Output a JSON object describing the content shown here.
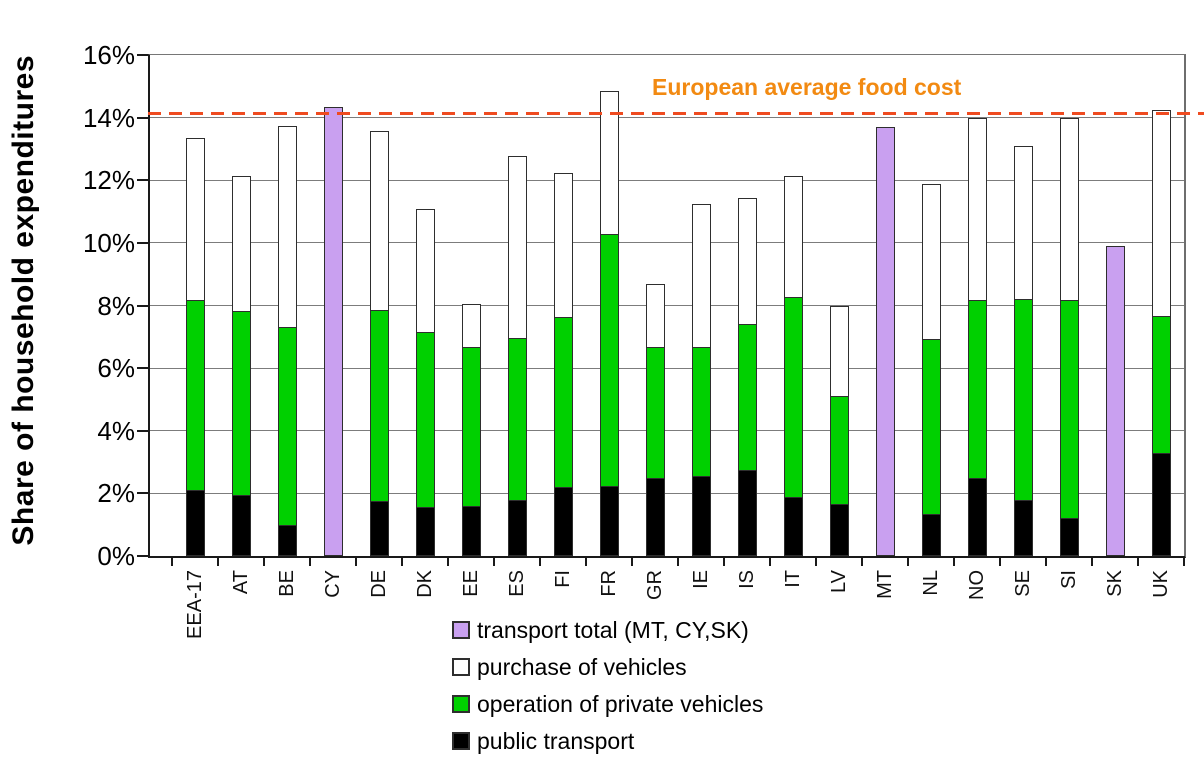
{
  "chart_data": {
    "type": "bar",
    "stacked": true,
    "title": "",
    "ylabel": "Share of household expenditures",
    "xlabel": "",
    "ylim": [
      0,
      16
    ],
    "y_ticks": [
      0,
      2,
      4,
      6,
      8,
      10,
      12,
      14,
      16
    ],
    "y_tick_labels": [
      "0%",
      "2%",
      "4%",
      "6%",
      "8%",
      "10%",
      "12%",
      "14%",
      "16%"
    ],
    "grid": true,
    "legend_position": "bottom",
    "annotation": {
      "text": "European average food cost",
      "y_value": 14.15
    },
    "categories": [
      "EEA-17",
      "AT",
      "BE",
      "CY",
      "DE",
      "DK",
      "EE",
      "ES",
      "FI",
      "FR",
      "GR",
      "IE",
      "IS",
      "IT",
      "LV",
      "MT",
      "NL",
      "NO",
      "SE",
      "SI",
      "SK",
      "UK"
    ],
    "series": [
      {
        "name": "public transport",
        "key": "public-transport",
        "color": "#000000",
        "values": [
          2.1,
          1.95,
          1.0,
          0,
          1.75,
          1.55,
          1.6,
          1.8,
          2.2,
          2.25,
          2.5,
          2.55,
          2.75,
          1.9,
          1.65,
          0,
          1.35,
          2.5,
          1.8,
          1.2,
          0,
          3.3
        ]
      },
      {
        "name": "operation of private vehicles",
        "key": "operation-of-private-vehicles",
        "color": "#00d000",
        "values": [
          6.1,
          5.9,
          6.35,
          0,
          6.15,
          5.65,
          5.1,
          5.2,
          5.45,
          8.05,
          4.2,
          4.15,
          4.7,
          6.4,
          3.5,
          0,
          5.6,
          5.7,
          6.45,
          7.0,
          0,
          4.4
        ]
      },
      {
        "name": "purchase of vehicles",
        "key": "purchase-of-vehicles",
        "color": "#ffffff",
        "values": [
          5.2,
          4.35,
          6.45,
          0,
          5.75,
          3.95,
          1.4,
          5.85,
          4.65,
          4.6,
          2.05,
          4.6,
          4.05,
          3.9,
          2.9,
          0,
          5.0,
          5.85,
          4.9,
          5.85,
          0,
          6.6
        ]
      },
      {
        "name": "transport total (MT, CY,SK)",
        "key": "transport-total",
        "color": "#c9a0f0",
        "values": [
          0,
          0,
          0,
          14.35,
          0,
          0,
          0,
          0,
          0,
          0,
          0,
          0,
          0,
          0,
          0,
          13.7,
          0,
          0,
          0,
          0,
          9.9,
          0
        ]
      }
    ],
    "legend": [
      {
        "label": "transport total (MT, CY,SK)",
        "color": "#c9a0f0"
      },
      {
        "label": "purchase of vehicles",
        "color": "#ffffff"
      },
      {
        "label": "operation of private vehicles",
        "color": "#00d000"
      },
      {
        "label": "public transport",
        "color": "#000000"
      }
    ],
    "colors": {
      "annotation_text": "#f28a12",
      "annotation_line": "#ef4b20",
      "gridline": "#7c7c7c",
      "axis": "#1a1a1a"
    }
  }
}
